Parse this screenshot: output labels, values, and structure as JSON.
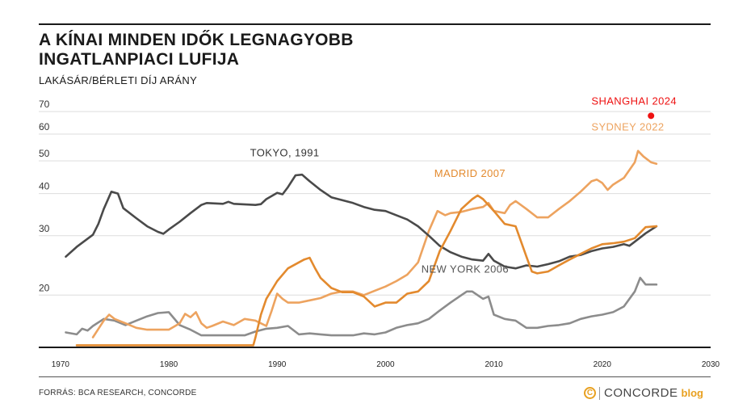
{
  "title_line1": "A KÍNAI MINDEN IDŐK LEGNAGYOBB",
  "title_line2": "INGATLANPIACI LUFIJA",
  "subtitle": "LAKÁSÁR/BÉRLETI DÍJ ARÁNY",
  "source": "FORRÁS: BCA RESEARCH, CONCORDE",
  "logo": {
    "mark": "C",
    "name": "CONCORDE",
    "suffix": "blog"
  },
  "colors": {
    "tokyo": "#4a4a4a",
    "madrid": "#e38a2e",
    "sydney": "#eda35f",
    "newyork": "#8c8c8c",
    "shanghai": "#ee1111",
    "grid": "#dddddd"
  },
  "chart_data": {
    "type": "line",
    "y_scale": "log",
    "ylim": [
      14,
      74
    ],
    "xlim": [
      1968,
      2030
    ],
    "x_ticks": [
      "1970",
      "1980",
      "1990",
      "2000",
      "2010",
      "2020",
      "2030"
    ],
    "y_ticks": [
      "20",
      "30",
      "40",
      "50",
      "60",
      "70"
    ],
    "grid": true,
    "series": [
      {
        "id": "tokyo",
        "name": "TOKYO, 1991",
        "points": [
          [
            1970.5,
            26.0
          ],
          [
            1971.5,
            27.8
          ],
          [
            1973,
            30.2
          ],
          [
            1973.5,
            32.5
          ],
          [
            1974,
            36.0
          ],
          [
            1974.7,
            40.5
          ],
          [
            1975.3,
            40.0
          ],
          [
            1975.8,
            36.2
          ],
          [
            1977,
            33.8
          ],
          [
            1978,
            32.0
          ],
          [
            1979,
            30.8
          ],
          [
            1979.5,
            30.4
          ],
          [
            1980,
            31.3
          ],
          [
            1981,
            33.0
          ],
          [
            1982,
            35.0
          ],
          [
            1983,
            37.0
          ],
          [
            1983.5,
            37.5
          ],
          [
            1985,
            37.3
          ],
          [
            1985.5,
            37.8
          ],
          [
            1986,
            37.3
          ],
          [
            1988,
            37.0
          ],
          [
            1988.5,
            37.2
          ],
          [
            1989,
            38.5
          ],
          [
            1990,
            40.2
          ],
          [
            1990.5,
            39.8
          ],
          [
            1991,
            41.8
          ],
          [
            1991.7,
            45.3
          ],
          [
            1992.3,
            45.5
          ],
          [
            1993,
            43.5
          ],
          [
            1994,
            41.0
          ],
          [
            1995,
            39.0
          ],
          [
            1997,
            37.5
          ],
          [
            1998,
            36.5
          ],
          [
            1999,
            35.8
          ],
          [
            2000,
            35.5
          ],
          [
            2001,
            34.5
          ],
          [
            2002,
            33.5
          ],
          [
            2003,
            32.0
          ],
          [
            2004,
            30.0
          ],
          [
            2005,
            28.0
          ],
          [
            2006,
            26.8
          ],
          [
            2007,
            26.0
          ],
          [
            2008,
            25.5
          ],
          [
            2009,
            25.3
          ],
          [
            2009.5,
            26.5
          ],
          [
            2010,
            25.3
          ],
          [
            2011,
            24.3
          ],
          [
            2012,
            24.0
          ],
          [
            2013,
            24.5
          ],
          [
            2014,
            24.3
          ],
          [
            2015,
            24.7
          ],
          [
            2016,
            25.2
          ],
          [
            2017,
            26.0
          ],
          [
            2018,
            26.3
          ],
          [
            2019,
            27.0
          ],
          [
            2020,
            27.5
          ],
          [
            2021,
            27.8
          ],
          [
            2022,
            28.3
          ],
          [
            2022.5,
            28.0
          ],
          [
            2023,
            28.8
          ],
          [
            2024,
            30.5
          ],
          [
            2025,
            32.0
          ]
        ]
      },
      {
        "id": "madrid",
        "name": "MADRID 2007",
        "points": [
          [
            1971.5,
            14.2
          ],
          [
            1987.8,
            14.2
          ],
          [
            1988,
            15.0
          ],
          [
            1988.5,
            17.5
          ],
          [
            1989,
            19.5
          ],
          [
            1990,
            22.0
          ],
          [
            1991,
            24.0
          ],
          [
            1992,
            25.0
          ],
          [
            1992.5,
            25.5
          ],
          [
            1993,
            25.8
          ],
          [
            1993.5,
            24.0
          ],
          [
            1994,
            22.5
          ],
          [
            1995,
            21.0
          ],
          [
            1996,
            20.4
          ],
          [
            1997,
            20.4
          ],
          [
            1998,
            19.8
          ],
          [
            1999,
            18.5
          ],
          [
            2000,
            19.0
          ],
          [
            2001,
            19.0
          ],
          [
            2002,
            20.2
          ],
          [
            2003,
            20.5
          ],
          [
            2004,
            22.0
          ],
          [
            2005,
            27.0
          ],
          [
            2006,
            31.0
          ],
          [
            2007,
            36.0
          ],
          [
            2008,
            38.5
          ],
          [
            2008.5,
            39.5
          ],
          [
            2009,
            38.5
          ],
          [
            2010,
            35.5
          ],
          [
            2011,
            32.5
          ],
          [
            2012,
            32.0
          ],
          [
            2013,
            26.0
          ],
          [
            2013.5,
            23.5
          ],
          [
            2014,
            23.2
          ],
          [
            2015,
            23.5
          ],
          [
            2016,
            24.5
          ],
          [
            2017,
            25.5
          ],
          [
            2018,
            26.5
          ],
          [
            2019,
            27.5
          ],
          [
            2020,
            28.3
          ],
          [
            2021,
            28.5
          ],
          [
            2022,
            28.8
          ],
          [
            2023,
            29.5
          ],
          [
            2024,
            31.8
          ],
          [
            2025,
            32.0
          ]
        ]
      },
      {
        "id": "sydney",
        "name": "SYDNEY 2022",
        "points": [
          [
            1973,
            15.0
          ],
          [
            1974,
            16.8
          ],
          [
            1974.5,
            17.5
          ],
          [
            1975,
            17.0
          ],
          [
            1976,
            16.5
          ],
          [
            1977,
            16.0
          ],
          [
            1978,
            15.8
          ],
          [
            1980,
            15.8
          ],
          [
            1981,
            16.5
          ],
          [
            1981.5,
            17.6
          ],
          [
            1982,
            17.2
          ],
          [
            1982.5,
            17.8
          ],
          [
            1983,
            16.5
          ],
          [
            1983.5,
            16.0
          ],
          [
            1984,
            16.2
          ],
          [
            1985,
            16.7
          ],
          [
            1986,
            16.3
          ],
          [
            1987,
            17.0
          ],
          [
            1988,
            16.8
          ],
          [
            1989,
            16.2
          ],
          [
            1989.5,
            18.0
          ],
          [
            1990,
            20.2
          ],
          [
            1990.5,
            19.5
          ],
          [
            1991,
            19.0
          ],
          [
            1992,
            19.0
          ],
          [
            1993,
            19.3
          ],
          [
            1994,
            19.6
          ],
          [
            1995,
            20.2
          ],
          [
            1996,
            20.5
          ],
          [
            1997,
            20.5
          ],
          [
            1998,
            20.0
          ],
          [
            1999,
            20.6
          ],
          [
            2000,
            21.2
          ],
          [
            2001,
            22.0
          ],
          [
            2002,
            23.0
          ],
          [
            2003,
            25.0
          ],
          [
            2004,
            31.0
          ],
          [
            2004.8,
            35.5
          ],
          [
            2005.5,
            34.5
          ],
          [
            2006,
            35.0
          ],
          [
            2007,
            35.3
          ],
          [
            2008,
            36.0
          ],
          [
            2009,
            36.5
          ],
          [
            2009.5,
            37.5
          ],
          [
            2010,
            35.5
          ],
          [
            2011,
            35.0
          ],
          [
            2011.5,
            37.0
          ],
          [
            2012,
            38.0
          ],
          [
            2013,
            36.0
          ],
          [
            2014,
            34.0
          ],
          [
            2015,
            34.0
          ],
          [
            2016,
            36.0
          ],
          [
            2017,
            38.0
          ],
          [
            2018,
            40.5
          ],
          [
            2019,
            43.5
          ],
          [
            2019.5,
            44.0
          ],
          [
            2020,
            43.0
          ],
          [
            2020.5,
            41.0
          ],
          [
            2021,
            42.5
          ],
          [
            2022,
            44.5
          ],
          [
            2023,
            49.5
          ],
          [
            2023.3,
            53.5
          ],
          [
            2023.8,
            51.5
          ],
          [
            2024.5,
            49.5
          ],
          [
            2025,
            49.0
          ]
        ]
      },
      {
        "id": "newyork",
        "name": "NEW YORK 2006",
        "points": [
          [
            1970.5,
            15.5
          ],
          [
            1971.5,
            15.3
          ],
          [
            1972,
            15.9
          ],
          [
            1972.5,
            15.7
          ],
          [
            1973,
            16.2
          ],
          [
            1974,
            17.0
          ],
          [
            1975,
            16.8
          ],
          [
            1976,
            16.3
          ],
          [
            1977,
            16.8
          ],
          [
            1978,
            17.3
          ],
          [
            1979,
            17.7
          ],
          [
            1980,
            17.8
          ],
          [
            1981,
            16.3
          ],
          [
            1982,
            15.8
          ],
          [
            1983,
            15.2
          ],
          [
            1984,
            15.2
          ],
          [
            1986,
            15.2
          ],
          [
            1987,
            15.2
          ],
          [
            1988,
            15.6
          ],
          [
            1989,
            15.9
          ],
          [
            1990,
            16.0
          ],
          [
            1991,
            16.2
          ],
          [
            1992,
            15.3
          ],
          [
            1993,
            15.4
          ],
          [
            1994,
            15.3
          ],
          [
            1995,
            15.2
          ],
          [
            1996,
            15.2
          ],
          [
            1997,
            15.2
          ],
          [
            1998,
            15.4
          ],
          [
            1999,
            15.3
          ],
          [
            2000,
            15.5
          ],
          [
            2001,
            16.0
          ],
          [
            2002,
            16.3
          ],
          [
            2003,
            16.5
          ],
          [
            2004,
            17.0
          ],
          [
            2005,
            18.0
          ],
          [
            2006,
            19.0
          ],
          [
            2007,
            20.0
          ],
          [
            2007.5,
            20.5
          ],
          [
            2008,
            20.5
          ],
          [
            2009,
            19.5
          ],
          [
            2009.5,
            19.8
          ],
          [
            2010,
            17.5
          ],
          [
            2011,
            17.0
          ],
          [
            2012,
            16.8
          ],
          [
            2013,
            16.0
          ],
          [
            2014,
            16.0
          ],
          [
            2015,
            16.2
          ],
          [
            2016,
            16.3
          ],
          [
            2017,
            16.5
          ],
          [
            2018,
            17.0
          ],
          [
            2019,
            17.3
          ],
          [
            2020,
            17.5
          ],
          [
            2021,
            17.8
          ],
          [
            2022,
            18.5
          ],
          [
            2023,
            20.5
          ],
          [
            2023.5,
            22.5
          ],
          [
            2024,
            21.5
          ],
          [
            2025,
            21.5
          ]
        ]
      },
      {
        "id": "shanghai",
        "name": "SHANGHAI 2024",
        "points": [
          [
            2024.5,
            68.0
          ]
        ]
      }
    ],
    "labels": [
      {
        "series": "tokyo",
        "text": "TOKYO, 1991",
        "x": 1987.5,
        "y": 51.5
      },
      {
        "series": "madrid",
        "text": "MADRID 2007",
        "x": 2004.5,
        "y": 44.8
      },
      {
        "series": "sydney",
        "text": "SYDNEY 2022",
        "x": 2019,
        "y": 61.5
      },
      {
        "series": "newyork",
        "text": "NEW YORK 2006",
        "x": 2003.3,
        "y": 23.3
      },
      {
        "series": "shanghai",
        "text": "SHANGHAI 2024",
        "x": 2019,
        "y": 73.3
      }
    ]
  }
}
